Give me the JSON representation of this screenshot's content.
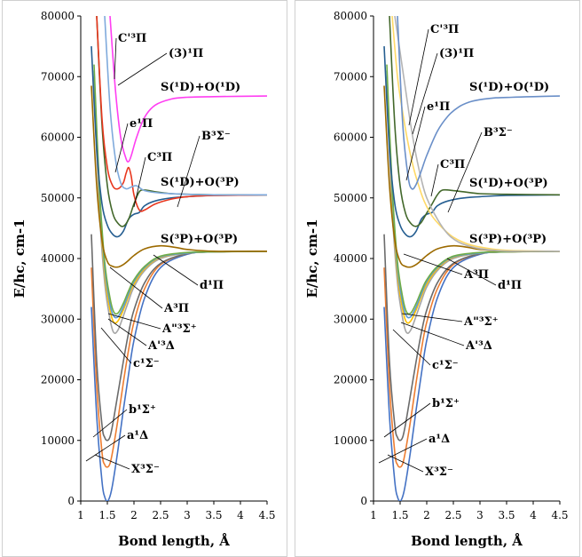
{
  "chart_data": [
    {
      "type": "line",
      "xlabel": "Bond length, Å",
      "ylabel": "E/hc, cm-1",
      "xlim": [
        1,
        4.5
      ],
      "ylim": [
        0,
        80000
      ],
      "x_ticks": [
        "1",
        "1.5",
        "2",
        "2.5",
        "3",
        "3.5",
        "4",
        "4.5"
      ],
      "y_ticks": [
        "0",
        "10000",
        "20000",
        "30000",
        "40000",
        "50000",
        "60000",
        "70000",
        "80000"
      ],
      "grid": false,
      "series": [
        {
          "name": "X³Σ⁻",
          "color": "#4472c4",
          "x": [
            1.2,
            1.3,
            1.4,
            1.45,
            1.5,
            1.55,
            1.6,
            1.7,
            1.8,
            1.9,
            2.0,
            2.2,
            2.5,
            3.0,
            3.5,
            4.5
          ],
          "y": [
            32000,
            14000,
            3200,
            700,
            0,
            800,
            2800,
            8500,
            15000,
            21000,
            26500,
            33500,
            38500,
            40700,
            41100,
            41200
          ]
        },
        {
          "name": "a¹Δ",
          "color": "#ed7d31",
          "x": [
            1.2,
            1.3,
            1.4,
            1.45,
            1.5,
            1.55,
            1.6,
            1.7,
            1.8,
            1.9,
            2.0,
            2.2,
            2.5,
            3.0,
            3.5,
            4.5
          ],
          "y": [
            38500,
            19000,
            8000,
            6000,
            5600,
            6200,
            8200,
            13500,
            19500,
            25000,
            29500,
            35000,
            39000,
            40800,
            41100,
            41200
          ]
        },
        {
          "name": "b¹Σ⁺",
          "color": "#6b6b6b",
          "x": [
            1.2,
            1.3,
            1.4,
            1.45,
            1.5,
            1.55,
            1.6,
            1.7,
            1.8,
            1.9,
            2.0,
            2.2,
            2.5,
            3.0,
            3.5,
            4.5
          ],
          "y": [
            44000,
            23000,
            12500,
            10500,
            10000,
            10600,
            12600,
            17800,
            23000,
            27800,
            31500,
            36000,
            39200,
            40800,
            41100,
            41200
          ]
        },
        {
          "name": "c¹Σ⁻",
          "color": "#a5a5a5",
          "x": [
            1.25,
            1.35,
            1.45,
            1.55,
            1.62,
            1.7,
            1.8,
            1.9,
            2.0,
            2.2,
            2.5,
            3.0,
            3.5,
            4.5
          ],
          "y": [
            68000,
            48000,
            36000,
            30000,
            27800,
            28200,
            30500,
            33000,
            35300,
            38000,
            40000,
            40900,
            41100,
            41200
          ]
        },
        {
          "name": "A'³Δ",
          "color": "#ffc000",
          "x": [
            1.25,
            1.35,
            1.45,
            1.55,
            1.62,
            1.7,
            1.8,
            1.9,
            2.0,
            2.2,
            2.5,
            3.0,
            3.5,
            4.5
          ],
          "y": [
            70000,
            50000,
            37500,
            31500,
            29500,
            29700,
            31500,
            33800,
            35800,
            38300,
            40200,
            40900,
            41100,
            41200
          ]
        },
        {
          "name": "A\"³Σ⁺",
          "color": "#5b9bd5",
          "x": [
            1.25,
            1.35,
            1.45,
            1.55,
            1.62,
            1.7,
            1.8,
            1.9,
            2.0,
            2.2,
            2.5,
            3.0,
            3.5,
            4.5
          ],
          "y": [
            71000,
            51000,
            38500,
            32500,
            30500,
            30400,
            32000,
            34200,
            36200,
            38500,
            40300,
            40900,
            41100,
            41200
          ]
        },
        {
          "name": "A³Π",
          "color": "#70ad47",
          "x": [
            1.25,
            1.35,
            1.45,
            1.55,
            1.62,
            1.7,
            1.8,
            1.9,
            2.0,
            2.2,
            2.5,
            3.0,
            3.5,
            4.5
          ],
          "y": [
            72000,
            52000,
            39500,
            33500,
            31200,
            31000,
            32600,
            34700,
            36500,
            38700,
            40400,
            41000,
            41100,
            41200
          ]
        },
        {
          "name": "d¹Π",
          "color": "#9c6a00",
          "x": [
            1.2,
            1.3,
            1.4,
            1.5,
            1.6,
            1.7,
            1.8,
            1.9,
            2.0,
            2.2,
            2.5,
            2.8,
            3.0,
            3.5,
            4.5
          ],
          "y": [
            68500,
            52000,
            43000,
            39500,
            38700,
            38600,
            39000,
            39700,
            40500,
            41600,
            42100,
            41800,
            41500,
            41200,
            41200
          ]
        },
        {
          "name": "B³Σ⁻",
          "color": "#255e91",
          "x": [
            1.2,
            1.3,
            1.4,
            1.5,
            1.6,
            1.7,
            1.8,
            1.9,
            2.0,
            2.1,
            2.2,
            2.4,
            2.7,
            3.0,
            3.5,
            4.5
          ],
          "y": [
            75000,
            58000,
            49000,
            45500,
            44000,
            43600,
            44500,
            46500,
            47300,
            47600,
            48700,
            49500,
            50000,
            50200,
            50400,
            50500
          ]
        },
        {
          "name": "C³Π",
          "color": "#43682b",
          "x": [
            1.3,
            1.4,
            1.5,
            1.6,
            1.7,
            1.8,
            1.9,
            2.0,
            2.1,
            2.2,
            2.4,
            2.7,
            3.0,
            3.5,
            4.5
          ],
          "y": [
            80000,
            62000,
            52000,
            47500,
            45800,
            45300,
            46500,
            49000,
            51000,
            51300,
            51000,
            50700,
            50600,
            50500,
            50500
          ]
        },
        {
          "name": "e¹Π",
          "color": "#e8361d",
          "x": [
            1.3,
            1.4,
            1.5,
            1.6,
            1.7,
            1.8,
            1.85,
            1.9,
            1.95,
            2.0,
            2.1,
            2.2,
            2.4,
            2.7,
            3.0,
            3.5,
            4.5
          ],
          "y": [
            80000,
            63000,
            55000,
            52000,
            51500,
            52500,
            54000,
            55000,
            53500,
            50500,
            48000,
            48000,
            49000,
            49800,
            50200,
            50400,
            50500
          ]
        },
        {
          "name": "C'³Π",
          "color": "#7faadc",
          "x": [
            1.45,
            1.55,
            1.65,
            1.75,
            1.85,
            1.95,
            2.05,
            2.2,
            2.5,
            3.0,
            3.5,
            4.5
          ],
          "y": [
            80000,
            65000,
            56500,
            52500,
            51500,
            51800,
            52000,
            51200,
            50800,
            50600,
            50500,
            50500
          ]
        },
        {
          "name": "(3)¹Π",
          "color": "#ff3ef2",
          "x": [
            1.55,
            1.65,
            1.75,
            1.85,
            1.9,
            1.95,
            2.05,
            2.2,
            2.4,
            2.7,
            3.0,
            3.5,
            4.5
          ],
          "y": [
            80000,
            68000,
            60000,
            56500,
            56000,
            57000,
            60000,
            63300,
            65300,
            66300,
            66600,
            66700,
            66800
          ]
        }
      ],
      "annotations": [
        "C'³Π",
        "(3)¹Π",
        "S(¹D)+O(¹D)",
        "e¹Π",
        "C³Π",
        "B³Σ⁻",
        "S(¹D)+O(³P)",
        "S(³P)+O(³P)",
        "d¹Π",
        "A³Π",
        "A\"³Σ⁺",
        "A'³Δ",
        "c¹Σ⁻",
        "b¹Σ⁺",
        "a¹Δ",
        "X³Σ⁻"
      ]
    },
    {
      "type": "line",
      "xlabel": "Bond length, Å",
      "ylabel": "E/hc, cm-1",
      "xlim": [
        1,
        4.5
      ],
      "ylim": [
        0,
        80000
      ],
      "x_ticks": [
        "1",
        "1.5",
        "2",
        "2.5",
        "3",
        "3.5",
        "4",
        "4.5"
      ],
      "y_ticks": [
        "0",
        "10000",
        "20000",
        "30000",
        "40000",
        "50000",
        "60000",
        "70000",
        "80000"
      ],
      "grid": false,
      "series": [
        {
          "name": "X³Σ⁻",
          "color": "#4472c4",
          "x": [
            1.2,
            1.3,
            1.4,
            1.45,
            1.5,
            1.55,
            1.6,
            1.7,
            1.8,
            1.9,
            2.0,
            2.2,
            2.5,
            3.0,
            3.5,
            4.5
          ],
          "y": [
            32000,
            14000,
            3200,
            700,
            0,
            800,
            2800,
            8500,
            15000,
            21000,
            26500,
            33500,
            38500,
            40700,
            41100,
            41200
          ]
        },
        {
          "name": "a¹Δ",
          "color": "#ed7d31",
          "x": [
            1.2,
            1.3,
            1.4,
            1.45,
            1.5,
            1.55,
            1.6,
            1.7,
            1.8,
            1.9,
            2.0,
            2.2,
            2.5,
            3.0,
            3.5,
            4.5
          ],
          "y": [
            38500,
            19000,
            8000,
            6000,
            5600,
            6200,
            8200,
            13500,
            19500,
            25000,
            29500,
            35000,
            39000,
            40800,
            41100,
            41200
          ]
        },
        {
          "name": "b¹Σ⁺",
          "color": "#6b6b6b",
          "x": [
            1.2,
            1.3,
            1.4,
            1.45,
            1.5,
            1.55,
            1.6,
            1.7,
            1.8,
            1.9,
            2.0,
            2.2,
            2.5,
            3.0,
            3.5,
            4.5
          ],
          "y": [
            44000,
            23000,
            12500,
            10500,
            10000,
            10600,
            12600,
            17800,
            23000,
            27800,
            31500,
            36000,
            39200,
            40800,
            41100,
            41200
          ]
        },
        {
          "name": "c¹Σ⁻",
          "color": "#a5a5a5",
          "x": [
            1.25,
            1.35,
            1.45,
            1.55,
            1.62,
            1.7,
            1.8,
            1.9,
            2.0,
            2.2,
            2.5,
            3.0,
            3.5,
            4.5
          ],
          "y": [
            68000,
            48000,
            36000,
            30000,
            27800,
            28200,
            30500,
            33000,
            35300,
            38000,
            40000,
            40900,
            41100,
            41200
          ]
        },
        {
          "name": "A'³Δ",
          "color": "#ffc000",
          "x": [
            1.25,
            1.35,
            1.45,
            1.55,
            1.62,
            1.7,
            1.8,
            1.9,
            2.0,
            2.2,
            2.5,
            3.0,
            3.5,
            4.5
          ],
          "y": [
            70000,
            50000,
            37500,
            31500,
            29500,
            29700,
            31500,
            33800,
            35800,
            38300,
            40200,
            40900,
            41100,
            41200
          ]
        },
        {
          "name": "A\"³Σ⁺",
          "color": "#5b9bd5",
          "x": [
            1.25,
            1.35,
            1.45,
            1.55,
            1.62,
            1.7,
            1.8,
            1.9,
            2.0,
            2.2,
            2.5,
            3.0,
            3.5,
            4.5
          ],
          "y": [
            71000,
            51000,
            38500,
            32500,
            30500,
            30400,
            32000,
            34200,
            36200,
            38500,
            40300,
            40900,
            41100,
            41200
          ]
        },
        {
          "name": "A³Π",
          "color": "#70ad47",
          "x": [
            1.25,
            1.35,
            1.45,
            1.55,
            1.62,
            1.7,
            1.8,
            1.9,
            2.0,
            2.2,
            2.5,
            3.0,
            3.5,
            4.5
          ],
          "y": [
            72000,
            52000,
            39500,
            33500,
            31200,
            31000,
            32600,
            34700,
            36500,
            38700,
            40400,
            41000,
            41100,
            41200
          ]
        },
        {
          "name": "d¹Π",
          "color": "#9c6a00",
          "x": [
            1.2,
            1.3,
            1.4,
            1.5,
            1.6,
            1.7,
            1.8,
            1.9,
            2.0,
            2.2,
            2.5,
            2.8,
            3.0,
            3.5,
            4.5
          ],
          "y": [
            68500,
            52000,
            43000,
            39500,
            38700,
            38600,
            39000,
            39700,
            40500,
            41600,
            42100,
            41800,
            41500,
            41200,
            41200
          ]
        },
        {
          "name": "B³Σ⁻",
          "color": "#255e91",
          "x": [
            1.2,
            1.3,
            1.4,
            1.5,
            1.6,
            1.7,
            1.8,
            1.9,
            2.0,
            2.1,
            2.2,
            2.4,
            2.7,
            3.0,
            3.5,
            4.5
          ],
          "y": [
            75000,
            58000,
            49000,
            45500,
            44000,
            43600,
            44500,
            46500,
            47300,
            47600,
            48700,
            49500,
            50000,
            50200,
            50400,
            50500
          ]
        },
        {
          "name": "C³Π",
          "color": "#43682b",
          "x": [
            1.3,
            1.4,
            1.5,
            1.6,
            1.7,
            1.8,
            1.9,
            2.0,
            2.1,
            2.2,
            2.3,
            2.5,
            2.7,
            3.0,
            3.5,
            4.5
          ],
          "y": [
            80000,
            62000,
            52000,
            47500,
            45800,
            45300,
            46000,
            47500,
            49000,
            50500,
            51300,
            51200,
            51000,
            50700,
            50600,
            50500
          ]
        },
        {
          "name": "e¹Π",
          "color": "#ffd966",
          "x": [
            1.35,
            1.45,
            1.55,
            1.65,
            1.75,
            1.85,
            1.95,
            2.1,
            2.3,
            2.5,
            2.8,
            3.2,
            3.6,
            4.5
          ],
          "y": [
            80000,
            70000,
            64000,
            59000,
            55000,
            52000,
            49500,
            47000,
            45000,
            43500,
            42300,
            41600,
            41300,
            41200
          ]
        },
        {
          "name": "C'³Π",
          "color": "#b4b4b4",
          "x": [
            1.4,
            1.5,
            1.6,
            1.7,
            1.8,
            1.9,
            2.0,
            2.2,
            2.4,
            2.6,
            2.9,
            3.2,
            3.6,
            4.5
          ],
          "y": [
            80000,
            74000,
            68000,
            62000,
            57000,
            53000,
            50000,
            46500,
            44000,
            42700,
            41800,
            41400,
            41200,
            41200
          ]
        },
        {
          "name": "(3)¹Π",
          "color": "#6a8fc8",
          "x": [
            1.45,
            1.55,
            1.65,
            1.72,
            1.8,
            1.9,
            2.0,
            2.2,
            2.4,
            2.6,
            2.8,
            3.0,
            3.3,
            3.6,
            4.0,
            4.5
          ],
          "y": [
            80000,
            62000,
            53500,
            51500,
            52200,
            54500,
            57000,
            61000,
            63500,
            65000,
            65800,
            66200,
            66500,
            66600,
            66700,
            66800
          ]
        }
      ],
      "annotations": [
        "C'³Π",
        "(3)¹Π",
        "S(¹D)+O(¹D)",
        "e¹Π",
        "B³Σ⁻",
        "C³Π",
        "S(¹D)+O(³P)",
        "S(³P)+O(³P)",
        "d¹Π",
        "A³Π",
        "A\"³Σ⁺",
        "A'³Δ",
        "c¹Σ⁻",
        "b¹Σ⁺",
        "a¹Δ",
        "X³Σ⁻"
      ]
    }
  ]
}
